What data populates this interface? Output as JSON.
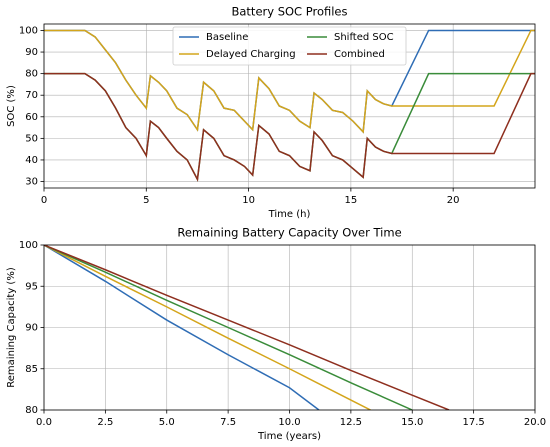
{
  "chart_data": [
    {
      "type": "line",
      "title": "Battery SOC Profiles",
      "xlabel": "Time (h)",
      "ylabel": "SOC (%)",
      "x": [
        0,
        2,
        2.5,
        3,
        3.5,
        4,
        4.5,
        5,
        5.2,
        5.6,
        6,
        6.5,
        7,
        7.5,
        7.8,
        8.3,
        8.8,
        9.3,
        9.8,
        10.2,
        10.5,
        11,
        11.5,
        12,
        12.5,
        13,
        13.2,
        13.6,
        14.1,
        14.6,
        15.1,
        15.6,
        15.8,
        16.2,
        16.6,
        17,
        18.8,
        22,
        23.8,
        24
      ],
      "series": [
        {
          "name": "Baseline",
          "color": "#2f6db5",
          "values": [
            100,
            100,
            97,
            91,
            85,
            77,
            70,
            64,
            79,
            76,
            72,
            64,
            61,
            54,
            76,
            72,
            64,
            63,
            58,
            54,
            78,
            73,
            65,
            63,
            58,
            55,
            71,
            68,
            63,
            62,
            58,
            53,
            72,
            68,
            66,
            65,
            100,
            100,
            100,
            100
          ]
        },
        {
          "name": "Delayed Charging",
          "color": "#d4a51b",
          "values": [
            100,
            100,
            97,
            91,
            85,
            77,
            70,
            64,
            79,
            76,
            72,
            64,
            61,
            54,
            76,
            72,
            64,
            63,
            58,
            54,
            78,
            73,
            65,
            63,
            58,
            55,
            71,
            68,
            63,
            62,
            58,
            53,
            72,
            68,
            66,
            65,
            65,
            65,
            100,
            100
          ]
        },
        {
          "name": "Shifted SOC",
          "color": "#3a8c3a",
          "values": [
            80,
            80,
            77,
            72,
            64,
            55,
            50,
            42,
            58,
            55,
            50,
            44,
            40,
            31,
            54,
            50,
            42,
            40,
            37,
            33,
            56,
            52,
            44,
            42,
            37,
            35,
            53,
            49,
            42,
            40,
            36,
            32,
            50,
            46,
            44,
            43,
            80,
            80,
            80,
            80
          ]
        },
        {
          "name": "Combined",
          "color": "#8e2f1f",
          "values": [
            80,
            80,
            77,
            72,
            64,
            55,
            50,
            42,
            58,
            55,
            50,
            44,
            40,
            31,
            54,
            50,
            42,
            40,
            37,
            33,
            56,
            52,
            44,
            42,
            37,
            35,
            53,
            49,
            42,
            40,
            36,
            32,
            50,
            46,
            44,
            43,
            43,
            43,
            80,
            80
          ]
        }
      ],
      "xlim": [
        0,
        24
      ],
      "xticks": [
        0,
        5,
        10,
        15,
        20
      ],
      "ylim": [
        27,
        103
      ],
      "yticks": [
        30,
        40,
        50,
        60,
        70,
        80,
        90,
        100
      ],
      "grid": true,
      "legend": "upper center",
      "legend_ncol": 2
    },
    {
      "type": "line",
      "title": "Remaining Battery Capacity Over Time",
      "xlabel": "Time (years)",
      "ylabel": "Remaining Capacity (%)",
      "series": [
        {
          "name": "Baseline",
          "color": "#2f6db5",
          "x": [
            0,
            2.5,
            5,
            7.5,
            10,
            11.2
          ],
          "values": [
            100,
            95.6,
            90.9,
            86.7,
            82.7,
            80
          ]
        },
        {
          "name": "Delayed Charging",
          "color": "#d4a51b",
          "x": [
            0,
            2.5,
            5,
            7.5,
            10,
            12.5,
            13.3
          ],
          "values": [
            100,
            96.2,
            92.5,
            88.7,
            85,
            81.2,
            80
          ]
        },
        {
          "name": "Shifted SOC",
          "color": "#3a8c3a",
          "x": [
            0,
            2.5,
            5,
            7.5,
            10,
            12.5,
            15
          ],
          "values": [
            100,
            96.7,
            93.3,
            90,
            86.7,
            83.3,
            80
          ]
        },
        {
          "name": "Combined",
          "color": "#8e2f1f",
          "x": [
            0,
            2.5,
            5,
            7.5,
            10,
            12.5,
            15,
            16.5
          ],
          "values": [
            100,
            97,
            93.9,
            90.9,
            87.9,
            84.8,
            81.8,
            80
          ]
        }
      ],
      "xlim": [
        0,
        20
      ],
      "xticks": [
        {
          "value": 0,
          "label": "0.0"
        },
        {
          "value": 2.5,
          "label": "2.5"
        },
        {
          "value": 5,
          "label": "5.0"
        },
        {
          "value": 7.5,
          "label": "7.5"
        },
        {
          "value": 10,
          "label": "10.0"
        },
        {
          "value": 12.5,
          "label": "12.5"
        },
        {
          "value": 15,
          "label": "15.0"
        },
        {
          "value": 17.5,
          "label": "17.5"
        },
        {
          "value": 20,
          "label": "20.0"
        }
      ],
      "ylim": [
        80,
        100
      ],
      "yticks": [
        80,
        85,
        90,
        95,
        100
      ],
      "grid": true
    }
  ]
}
